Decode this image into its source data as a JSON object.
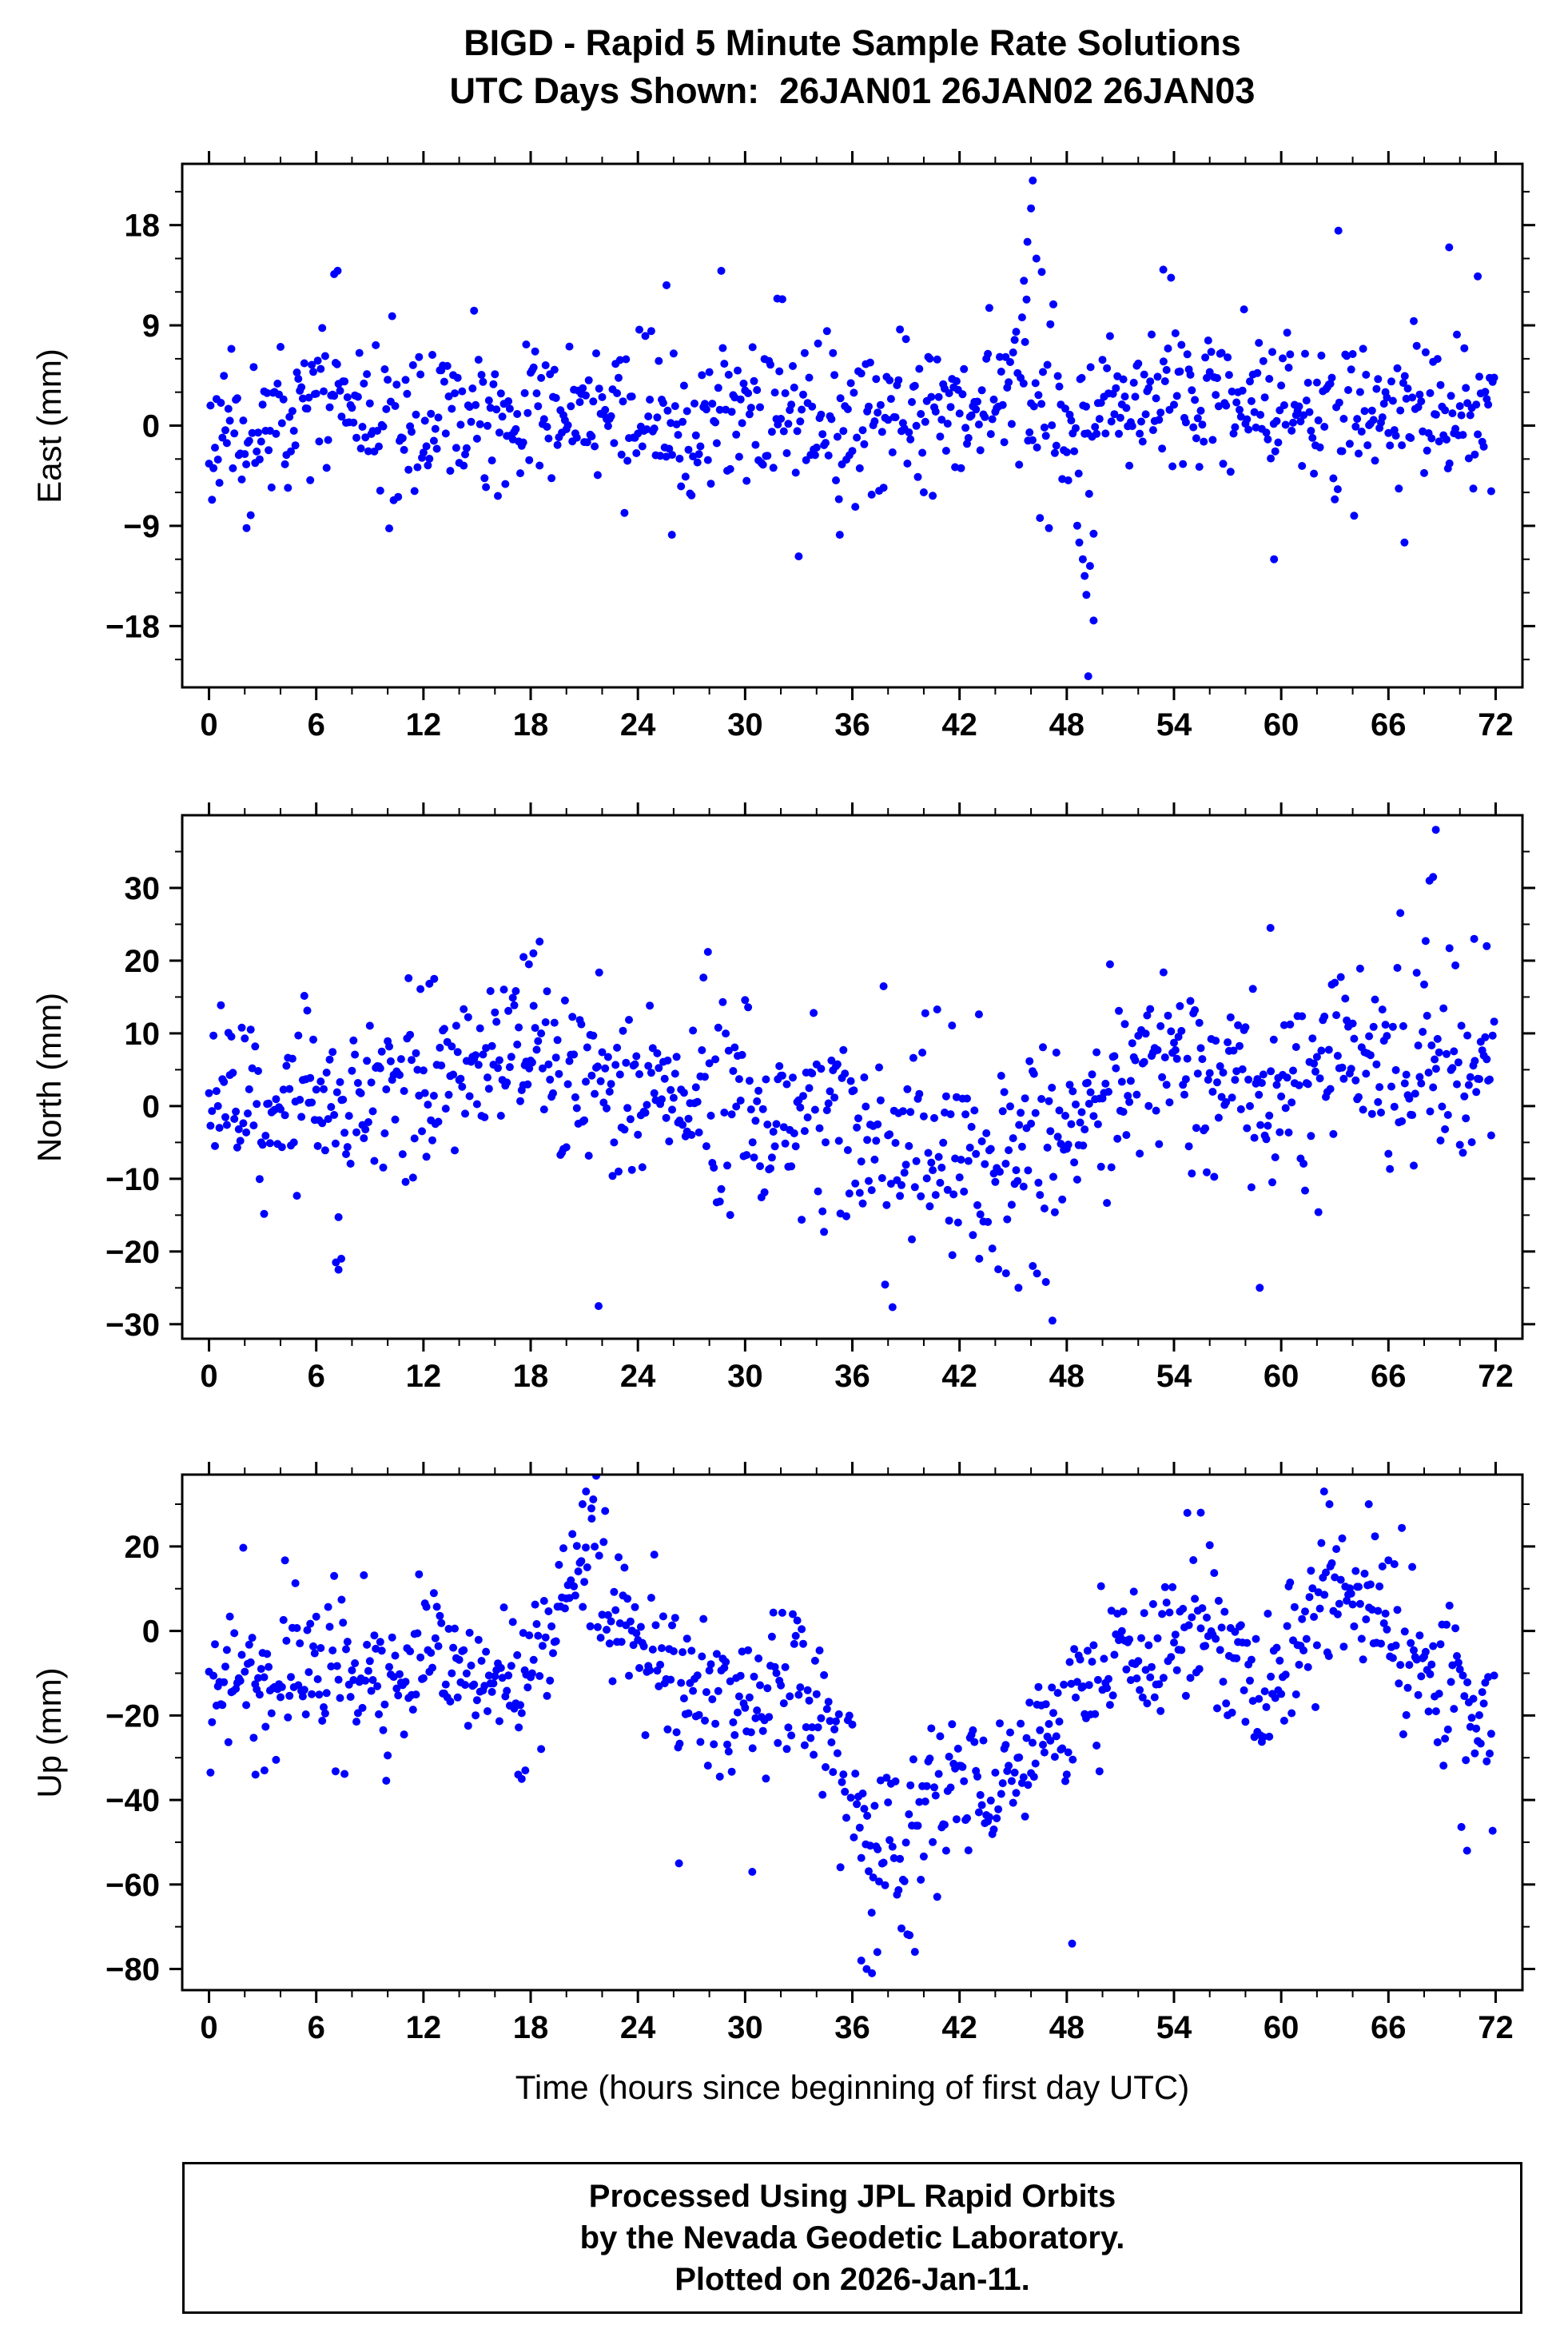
{
  "title": {
    "line1": "BIGD - Rapid 5 Minute Sample Rate Solutions",
    "line2": "UTC Days Shown:  26JAN01 26JAN02 26JAN03"
  },
  "xlabel": "Time (hours since beginning of first day UTC)",
  "footer": {
    "lines": [
      "Processed Using JPL Rapid Orbits",
      "by the Nevada Geodetic Laboratory.",
      "Plotted on 2026-Jan-11."
    ]
  },
  "style": {
    "point_color": "#0000ff",
    "frame_color": "#000000",
    "text_color": "#000000",
    "point_radius": 5
  },
  "chart_data": [
    {
      "type": "scatter",
      "name": "east",
      "ylabel": "East (mm)",
      "xlim": [
        -1.5,
        73.5
      ],
      "ylim": [
        -23.5,
        23.5
      ],
      "xticks": [
        0,
        6,
        12,
        18,
        24,
        30,
        36,
        42,
        48,
        54,
        60,
        66,
        72
      ],
      "yticks": [
        -18,
        -9,
        0,
        9,
        18
      ],
      "x_minor_tick": 2,
      "y_minor_tick": 3,
      "seed": 11,
      "t_start": 0,
      "sample_interval_hours": 0.0833333,
      "n_points": 864,
      "trend_keyframes_mm": [
        [
          0,
          0
        ],
        [
          2,
          -0.5
        ],
        [
          4,
          1
        ],
        [
          6,
          2.5
        ],
        [
          7,
          3
        ],
        [
          8,
          1
        ],
        [
          10,
          0.5
        ],
        [
          12,
          0
        ],
        [
          16,
          1.5
        ],
        [
          18,
          1.5
        ],
        [
          20,
          0.5
        ],
        [
          24,
          0.5
        ],
        [
          28,
          0.5
        ],
        [
          30,
          1
        ],
        [
          34,
          -0.5
        ],
        [
          38,
          0.5
        ],
        [
          42,
          1.5
        ],
        [
          44,
          2
        ],
        [
          45.5,
          3
        ],
        [
          47,
          2
        ],
        [
          48,
          0
        ],
        [
          49,
          -2
        ],
        [
          50,
          1
        ],
        [
          51,
          2.5
        ],
        [
          52,
          3
        ],
        [
          56,
          2.5
        ],
        [
          60,
          2
        ],
        [
          64,
          1.5
        ],
        [
          68,
          1.5
        ],
        [
          72,
          0
        ]
      ],
      "sigma_keyframes_mm": [
        [
          0,
          3
        ],
        [
          12,
          3
        ],
        [
          24,
          3.2
        ],
        [
          36,
          3.4
        ],
        [
          44,
          3.4
        ],
        [
          47,
          4.2
        ],
        [
          48,
          5
        ],
        [
          50,
          3.4
        ],
        [
          60,
          3.2
        ],
        [
          72,
          3
        ]
      ],
      "outliers_mm": [
        [
          2.1,
          -9.2
        ],
        [
          7.0,
          13.6
        ],
        [
          7.2,
          13.9
        ],
        [
          25.6,
          12.6
        ],
        [
          25.9,
          -9.8
        ],
        [
          31.8,
          11.4
        ],
        [
          35.3,
          -9.8
        ],
        [
          45.6,
          13
        ],
        [
          45.8,
          16.5
        ],
        [
          46.0,
          19.5
        ],
        [
          46.1,
          22
        ],
        [
          46.3,
          15
        ],
        [
          46.6,
          13.8
        ],
        [
          48.7,
          -10.5
        ],
        [
          48.9,
          -12
        ],
        [
          49.0,
          -13.5
        ],
        [
          49.1,
          -15.2
        ],
        [
          49.2,
          -22.5
        ],
        [
          49.3,
          -12.6
        ],
        [
          49.5,
          -17.5
        ],
        [
          53.4,
          14
        ],
        [
          59.6,
          -12
        ],
        [
          63.2,
          17.5
        ],
        [
          66.9,
          -10.5
        ],
        [
          69.4,
          16
        ],
        [
          71.0,
          13.4
        ]
      ]
    },
    {
      "type": "scatter",
      "name": "north",
      "ylabel": "North (mm)",
      "xlim": [
        -1.5,
        73.5
      ],
      "ylim": [
        -32,
        40
      ],
      "xticks": [
        0,
        6,
        12,
        18,
        24,
        30,
        36,
        42,
        48,
        54,
        60,
        66,
        72
      ],
      "yticks": [
        -30,
        -20,
        -10,
        0,
        10,
        20,
        30
      ],
      "x_minor_tick": 2,
      "y_minor_tick": 5,
      "seed": 22,
      "t_start": 0,
      "sample_interval_hours": 0.0833333,
      "n_points": 864,
      "trend_keyframes_mm": [
        [
          0,
          1.5
        ],
        [
          2,
          1
        ],
        [
          4,
          0.5
        ],
        [
          6,
          1
        ],
        [
          8,
          0
        ],
        [
          10,
          2
        ],
        [
          12,
          4
        ],
        [
          14,
          5
        ],
        [
          16,
          7
        ],
        [
          17.5,
          9
        ],
        [
          19,
          6
        ],
        [
          20,
          4
        ],
        [
          22,
          3
        ],
        [
          24,
          2
        ],
        [
          26,
          1.5
        ],
        [
          28,
          0.5
        ],
        [
          30,
          0
        ],
        [
          32,
          -1.5
        ],
        [
          34,
          -2.5
        ],
        [
          36,
          -3.5
        ],
        [
          38,
          -4.5
        ],
        [
          40,
          -6
        ],
        [
          42,
          -7
        ],
        [
          44,
          -8
        ],
        [
          46,
          -9
        ],
        [
          47.5,
          -8
        ],
        [
          49,
          -3
        ],
        [
          50,
          0
        ],
        [
          51,
          3
        ],
        [
          52,
          5
        ],
        [
          53,
          7
        ],
        [
          54,
          7
        ],
        [
          55,
          6
        ],
        [
          56,
          4
        ],
        [
          58,
          2
        ],
        [
          60,
          3
        ],
        [
          62,
          4
        ],
        [
          64,
          6
        ],
        [
          65,
          7
        ],
        [
          66,
          6
        ],
        [
          68,
          6
        ],
        [
          70,
          4.5
        ],
        [
          72,
          4
        ]
      ],
      "sigma_keyframes_mm": [
        [
          0,
          3.5
        ],
        [
          2,
          5
        ],
        [
          6,
          6
        ],
        [
          10,
          6.5
        ],
        [
          18,
          6
        ],
        [
          22,
          6.5
        ],
        [
          34,
          7
        ],
        [
          40,
          7
        ],
        [
          46,
          7.5
        ],
        [
          50,
          6.5
        ],
        [
          54,
          5.5
        ],
        [
          58,
          6
        ],
        [
          62,
          6.5
        ],
        [
          66,
          7
        ],
        [
          70,
          6.5
        ],
        [
          72,
          5.5
        ]
      ],
      "outliers_mm": [
        [
          7.1,
          -21.5
        ],
        [
          7.25,
          -22.5
        ],
        [
          7.4,
          -21
        ],
        [
          12.6,
          17.5
        ],
        [
          17.6,
          20.5
        ],
        [
          17.9,
          19.5
        ],
        [
          18.15,
          21
        ],
        [
          21.8,
          -27.5
        ],
        [
          41.6,
          -20.5
        ],
        [
          43.1,
          -21
        ],
        [
          44.6,
          -23
        ],
        [
          45.3,
          -25
        ],
        [
          46.1,
          -22
        ],
        [
          47.2,
          -29.5
        ],
        [
          58.8,
          -25
        ],
        [
          59.4,
          24.5
        ],
        [
          68.3,
          31
        ],
        [
          68.5,
          31.5
        ],
        [
          68.65,
          38
        ],
        [
          70.8,
          23
        ],
        [
          71.5,
          22
        ]
      ]
    },
    {
      "type": "scatter",
      "name": "up",
      "ylabel": "Up (mm)",
      "xlim": [
        -1.5,
        73.5
      ],
      "ylim": [
        -85,
        37
      ],
      "xticks": [
        0,
        6,
        12,
        18,
        24,
        30,
        36,
        42,
        48,
        54,
        60,
        66,
        72
      ],
      "yticks": [
        -80,
        -60,
        -40,
        -20,
        0,
        20
      ],
      "x_minor_tick": 2,
      "y_minor_tick": 10,
      "seed": 33,
      "t_start": 0,
      "sample_interval_hours": 0.0833333,
      "n_points": 864,
      "trend_keyframes_mm": [
        [
          0,
          -9
        ],
        [
          1,
          -11
        ],
        [
          2,
          -13
        ],
        [
          3,
          -14
        ],
        [
          4,
          -12
        ],
        [
          5,
          -7
        ],
        [
          6,
          -3
        ],
        [
          7,
          -4
        ],
        [
          8,
          -8
        ],
        [
          9,
          -12
        ],
        [
          10,
          -14
        ],
        [
          11,
          -12
        ],
        [
          12,
          -4
        ],
        [
          13,
          -3
        ],
        [
          14,
          -7
        ],
        [
          15,
          -11
        ],
        [
          16,
          -11
        ],
        [
          17,
          -13
        ],
        [
          18,
          -9
        ],
        [
          19,
          -2
        ],
        [
          20,
          10
        ],
        [
          21,
          18
        ],
        [
          21.5,
          20
        ],
        [
          22,
          12
        ],
        [
          23,
          2
        ],
        [
          24,
          -3
        ],
        [
          25,
          -8
        ],
        [
          26,
          -13
        ],
        [
          27,
          -16
        ],
        [
          28,
          -18
        ],
        [
          29,
          -19
        ],
        [
          30,
          -18
        ],
        [
          31,
          -15
        ],
        [
          32,
          -13
        ],
        [
          33,
          -13
        ],
        [
          34,
          -16
        ],
        [
          35,
          -20
        ],
        [
          36,
          -38
        ],
        [
          37,
          -52
        ],
        [
          38,
          -54
        ],
        [
          39,
          -50
        ],
        [
          40,
          -44
        ],
        [
          41,
          -40
        ],
        [
          42,
          -38
        ],
        [
          43,
          -40
        ],
        [
          44,
          -40
        ],
        [
          45,
          -35
        ],
        [
          46,
          -30
        ],
        [
          47,
          -25
        ],
        [
          48,
          -20
        ],
        [
          49,
          -16
        ],
        [
          50,
          -12
        ],
        [
          51,
          -10
        ],
        [
          52,
          -8
        ],
        [
          53,
          -5
        ],
        [
          54,
          -2
        ],
        [
          55,
          0
        ],
        [
          56,
          -2
        ],
        [
          57,
          -8
        ],
        [
          58,
          -13
        ],
        [
          59,
          -14
        ],
        [
          60,
          -10
        ],
        [
          61,
          -4
        ],
        [
          62,
          4
        ],
        [
          63,
          10
        ],
        [
          64,
          10
        ],
        [
          65,
          8
        ],
        [
          66,
          2
        ],
        [
          67,
          -4
        ],
        [
          68,
          -9
        ],
        [
          69,
          -13
        ],
        [
          70,
          -16
        ],
        [
          71,
          -20
        ],
        [
          72,
          -24
        ]
      ],
      "sigma_keyframes_mm": [
        [
          0,
          9
        ],
        [
          20,
          8
        ],
        [
          30,
          8
        ],
        [
          36,
          10
        ],
        [
          40,
          9
        ],
        [
          48,
          8
        ],
        [
          60,
          9
        ],
        [
          72,
          9
        ]
      ],
      "outliers_mm": [
        [
          2.6,
          -34
        ],
        [
          3.1,
          -33
        ],
        [
          17.3,
          -34
        ],
        [
          17.5,
          -35
        ],
        [
          17.7,
          -33
        ],
        [
          20.9,
          30
        ],
        [
          21.1,
          33
        ],
        [
          21.4,
          29
        ],
        [
          26.3,
          -55
        ],
        [
          30.4,
          -57
        ],
        [
          36.5,
          -78
        ],
        [
          36.8,
          -80
        ],
        [
          37.1,
          -81
        ],
        [
          37.4,
          -76
        ],
        [
          39.2,
          -72
        ],
        [
          48.3,
          -74
        ],
        [
          55.5,
          28
        ],
        [
          62.4,
          33
        ],
        [
          62.7,
          30
        ],
        [
          64.9,
          30
        ],
        [
          70.4,
          -52
        ]
      ]
    }
  ]
}
